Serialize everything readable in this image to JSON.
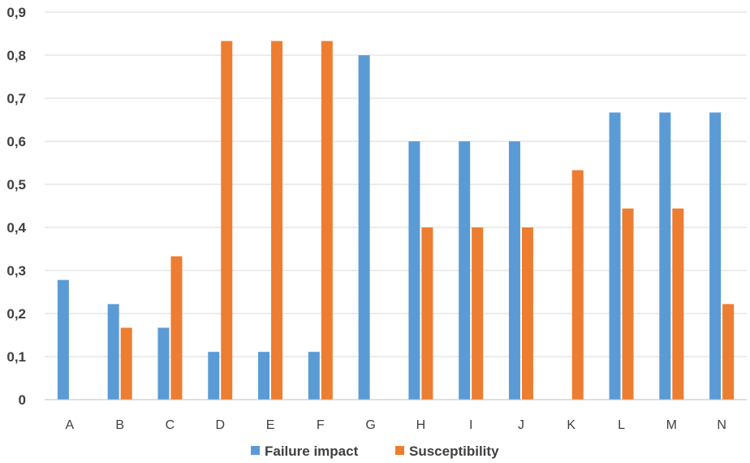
{
  "chart_data": {
    "type": "bar",
    "categories": [
      "A",
      "B",
      "C",
      "D",
      "E",
      "F",
      "G",
      "H",
      "I",
      "J",
      "K",
      "L",
      "M",
      "N"
    ],
    "series": [
      {
        "name": "Failure impact",
        "color": "#5b9bd5",
        "values": [
          0.278,
          0.222,
          0.167,
          0.111,
          0.111,
          0.111,
          0.8,
          0.6,
          0.6,
          0.6,
          0,
          0.667,
          0.667,
          0.667
        ]
      },
      {
        "name": "Susceptibility",
        "color": "#ed7d31",
        "values": [
          0,
          0.167,
          0.333,
          0.833,
          0.833,
          0.833,
          0,
          0.4,
          0.4,
          0.4,
          0.533,
          0.444,
          0.444,
          0.222
        ]
      }
    ],
    "yticks": [
      "0",
      "0,1",
      "0,2",
      "0,3",
      "0,4",
      "0,5",
      "0,6",
      "0,7",
      "0,8",
      "0,9"
    ],
    "ylim": [
      0,
      0.9
    ],
    "grid": true,
    "legend": "bottom"
  }
}
